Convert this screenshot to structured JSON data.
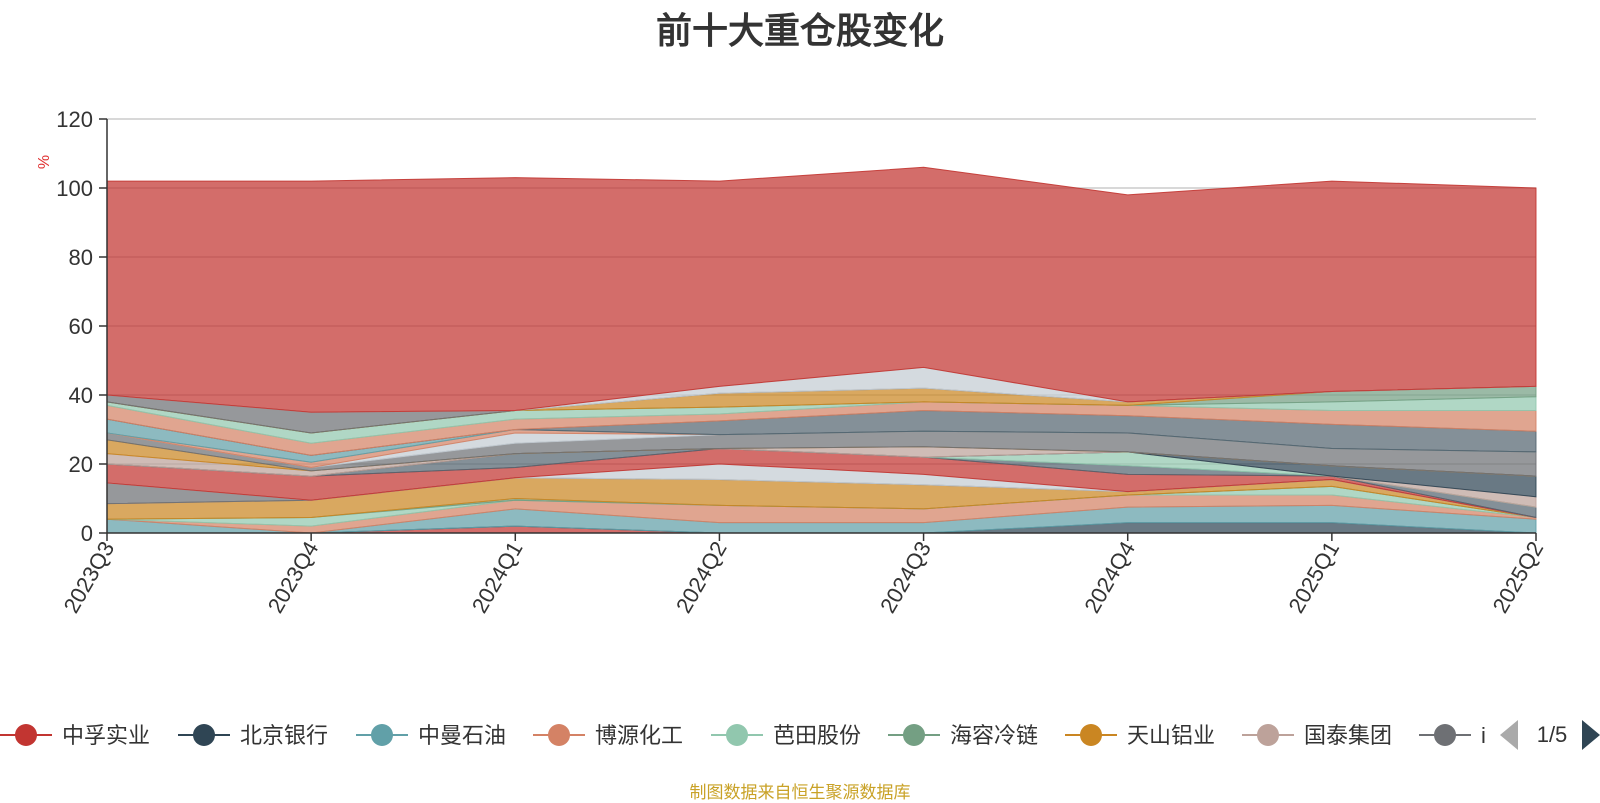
{
  "chart_data": {
    "type": "area",
    "stacked": true,
    "title": "前十大重仓股变化",
    "y_unit": "%",
    "ylim": [
      0,
      120
    ],
    "y_ticks": [
      0,
      20,
      40,
      60,
      80,
      100,
      120
    ],
    "grid": true,
    "categories": [
      "2023Q3",
      "2023Q4",
      "2024Q1",
      "2024Q2",
      "2024Q3",
      "2024Q4",
      "2025Q1",
      "2025Q2"
    ],
    "series": [
      {
        "name": "中孚实业",
        "color": "#c23531",
        "values": [
          0,
          0,
          2,
          0,
          0,
          0,
          0,
          0
        ]
      },
      {
        "name": "北京银行",
        "color": "#2f4554",
        "values": [
          0,
          0,
          0,
          0,
          0,
          3,
          3,
          0
        ]
      },
      {
        "name": "中曼石油",
        "color": "#61a0a8",
        "values": [
          4,
          0,
          5,
          3,
          3,
          4.5,
          5,
          4
        ]
      },
      {
        "name": "博源化工",
        "color": "#d48265",
        "values": [
          0,
          2,
          2.5,
          5,
          4,
          3.5,
          3,
          0.5
        ]
      },
      {
        "name": "芭田股份",
        "color": "#91c7ae",
        "values": [
          0,
          2.5,
          0,
          0,
          0,
          0,
          2.5,
          0
        ]
      },
      {
        "name": "海容冷链",
        "color": "#749f83",
        "values": [
          0,
          0,
          0.5,
          0,
          0,
          0,
          0,
          0
        ]
      },
      {
        "name": "天山铝业",
        "color": "#ca8622",
        "values": [
          4.5,
          5,
          6,
          7.5,
          7,
          1,
          2,
          0
        ]
      },
      {
        "name": "国泰集团",
        "color": "#bda29a",
        "values": [
          0,
          0,
          0,
          0,
          0,
          0,
          0,
          0
        ]
      },
      {
        "name": "",
        "color": "#6e7074",
        "values": [
          6,
          0,
          0,
          0,
          0,
          0,
          0,
          0
        ]
      },
      {
        "name": "",
        "color": "#c4ccd3",
        "values": [
          0,
          0,
          0,
          4.5,
          3,
          0,
          0,
          0
        ]
      },
      {
        "name": "",
        "color": "#c23531",
        "values": [
          5.5,
          7,
          3,
          4.5,
          5,
          5,
          1,
          0
        ]
      },
      {
        "name": "",
        "color": "#546570",
        "values": [
          0,
          0,
          4,
          0,
          0,
          2.5,
          0,
          3
        ]
      },
      {
        "name": "",
        "color": "#91c7ae",
        "values": [
          0,
          0,
          0,
          0,
          0,
          4,
          0,
          0
        ]
      },
      {
        "name": "",
        "color": "#bda29a",
        "values": [
          0,
          0,
          0,
          0,
          0,
          0,
          0,
          3
        ]
      },
      {
        "name": "",
        "color": "#2f4554",
        "values": [
          0,
          0,
          0,
          0,
          0,
          0,
          3,
          6
        ]
      },
      {
        "name": "",
        "color": "#bda29a",
        "values": [
          3,
          1.5,
          0,
          0,
          3,
          0,
          0,
          0
        ]
      },
      {
        "name": "",
        "color": "#ca8622",
        "values": [
          4,
          0,
          0,
          0,
          0,
          0,
          0,
          0
        ]
      },
      {
        "name": "",
        "color": "#6e7074",
        "values": [
          2,
          1,
          3,
          4,
          4.5,
          5.5,
          5,
          7
        ]
      },
      {
        "name": "",
        "color": "#c4ccd3",
        "values": [
          0,
          0,
          3,
          0,
          0,
          0,
          0,
          0
        ]
      },
      {
        "name": "",
        "color": "#d48265",
        "values": [
          0,
          1.5,
          1,
          0,
          0,
          0,
          0,
          0
        ]
      },
      {
        "name": "",
        "color": "#61a0a8",
        "values": [
          4,
          2,
          0,
          0,
          0,
          0,
          0,
          0
        ]
      },
      {
        "name": "",
        "color": "#546570",
        "values": [
          0,
          0,
          0,
          4,
          6,
          5,
          7,
          6
        ]
      },
      {
        "name": "",
        "color": "#d48265",
        "values": [
          4,
          3.5,
          3,
          2,
          2.5,
          3,
          4,
          6
        ]
      },
      {
        "name": "",
        "color": "#91c7ae",
        "values": [
          1,
          3,
          2.5,
          2,
          0,
          0,
          2.5,
          4
        ]
      },
      {
        "name": "",
        "color": "#749f83",
        "values": [
          0,
          0,
          0,
          0,
          0,
          0,
          3,
          3
        ]
      },
      {
        "name": "",
        "color": "#ca8622",
        "values": [
          0,
          0,
          0,
          4,
          4,
          1,
          0,
          0
        ]
      },
      {
        "name": "",
        "color": "#6e7074",
        "values": [
          2,
          6,
          0,
          0,
          0,
          0,
          0,
          0
        ]
      },
      {
        "name": "",
        "color": "#c4ccd3",
        "values": [
          0,
          0,
          0,
          2,
          6,
          0,
          0,
          0
        ]
      },
      {
        "name": "",
        "color": "#c23531",
        "values": [
          62,
          67,
          67.5,
          59.5,
          58,
          60,
          61,
          57.5
        ]
      }
    ],
    "legend": {
      "position": "bottom",
      "items": [
        "中孚实业",
        "北京银行",
        "中曼石油",
        "博源化工",
        "芭田股份",
        "海容冷链",
        "天山铝业",
        "国泰集团",
        "i"
      ],
      "page": "1/5"
    }
  },
  "footer": {
    "source": "制图数据来自恒生聚源数据库"
  }
}
